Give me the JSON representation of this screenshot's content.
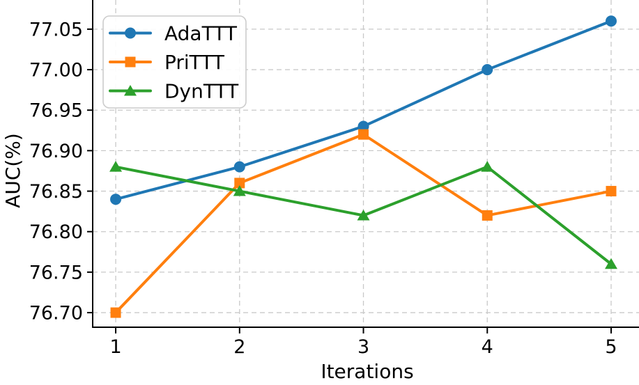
{
  "chart_data": {
    "type": "line",
    "title": "",
    "xlabel": "Iterations",
    "ylabel": "AUC(%)",
    "x": [
      1,
      2,
      3,
      4,
      5
    ],
    "series": [
      {
        "name": "AdaTTT",
        "color": "#1f77b4",
        "marker": "circle",
        "values": [
          76.84,
          76.88,
          76.93,
          77.0,
          77.06
        ]
      },
      {
        "name": "PriTTT",
        "color": "#ff7f0e",
        "marker": "square",
        "values": [
          76.7,
          76.86,
          76.92,
          76.82,
          76.85
        ]
      },
      {
        "name": "DynTTT",
        "color": "#2ca02c",
        "marker": "triangle",
        "values": [
          76.88,
          76.85,
          76.82,
          76.88,
          76.76
        ]
      }
    ],
    "xticks": [
      1,
      2,
      3,
      4,
      5
    ],
    "yticks": [
      76.7,
      76.75,
      76.8,
      76.85,
      76.9,
      76.95,
      77.0,
      77.05
    ],
    "ytick_decimals": 2,
    "xlim": [
      0.814,
      5.225
    ],
    "ylim": [
      76.682,
      77.086
    ],
    "grid": true,
    "grid_style": "dashed",
    "grid_color": "#c9c9c9",
    "spine_color": "#000000",
    "legend_position": "upper left"
  }
}
